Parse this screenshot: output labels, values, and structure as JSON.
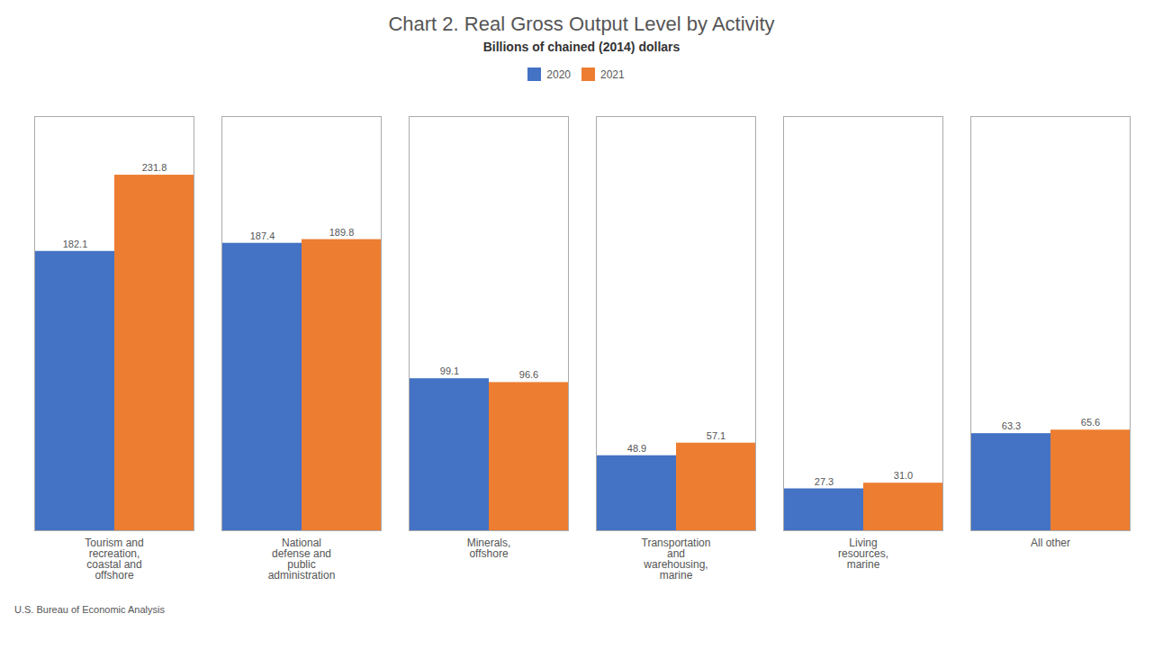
{
  "chart_data": {
    "type": "bar",
    "title": "Chart 2. Real Gross Output Level by Activity",
    "subtitle": "Billions of chained (2014) dollars",
    "footnote": "U.S. Bureau of Economic Analysis",
    "categories": [
      "Tourism and\nrecreation,\ncoastal and\noffshore",
      "National\ndefense and\npublic\nadministration",
      "Minerals,\noffshore",
      "Transportation\nand\nwarehousing,\nmarine",
      "Living\nresources,\nmarine",
      "All other"
    ],
    "series": [
      {
        "name": "2020",
        "color": "#4472C4",
        "values": [
          182.1,
          187.4,
          99.1,
          48.9,
          27.3,
          63.3
        ],
        "value_labels": [
          "182.1",
          "187.4",
          "99.1",
          "48.9",
          "27.3",
          "63.3"
        ]
      },
      {
        "name": "2021",
        "color": "#ED7D31",
        "values": [
          231.8,
          189.8,
          96.6,
          57.1,
          31.0,
          65.6
        ],
        "value_labels": [
          "231.8",
          "189.8",
          "96.6",
          "57.1",
          "31.0",
          "65.6"
        ]
      }
    ],
    "ylim": [
      0,
      270
    ],
    "grid": false,
    "legend": "left",
    "data_labels": true,
    "tick_labels": "x"
  }
}
